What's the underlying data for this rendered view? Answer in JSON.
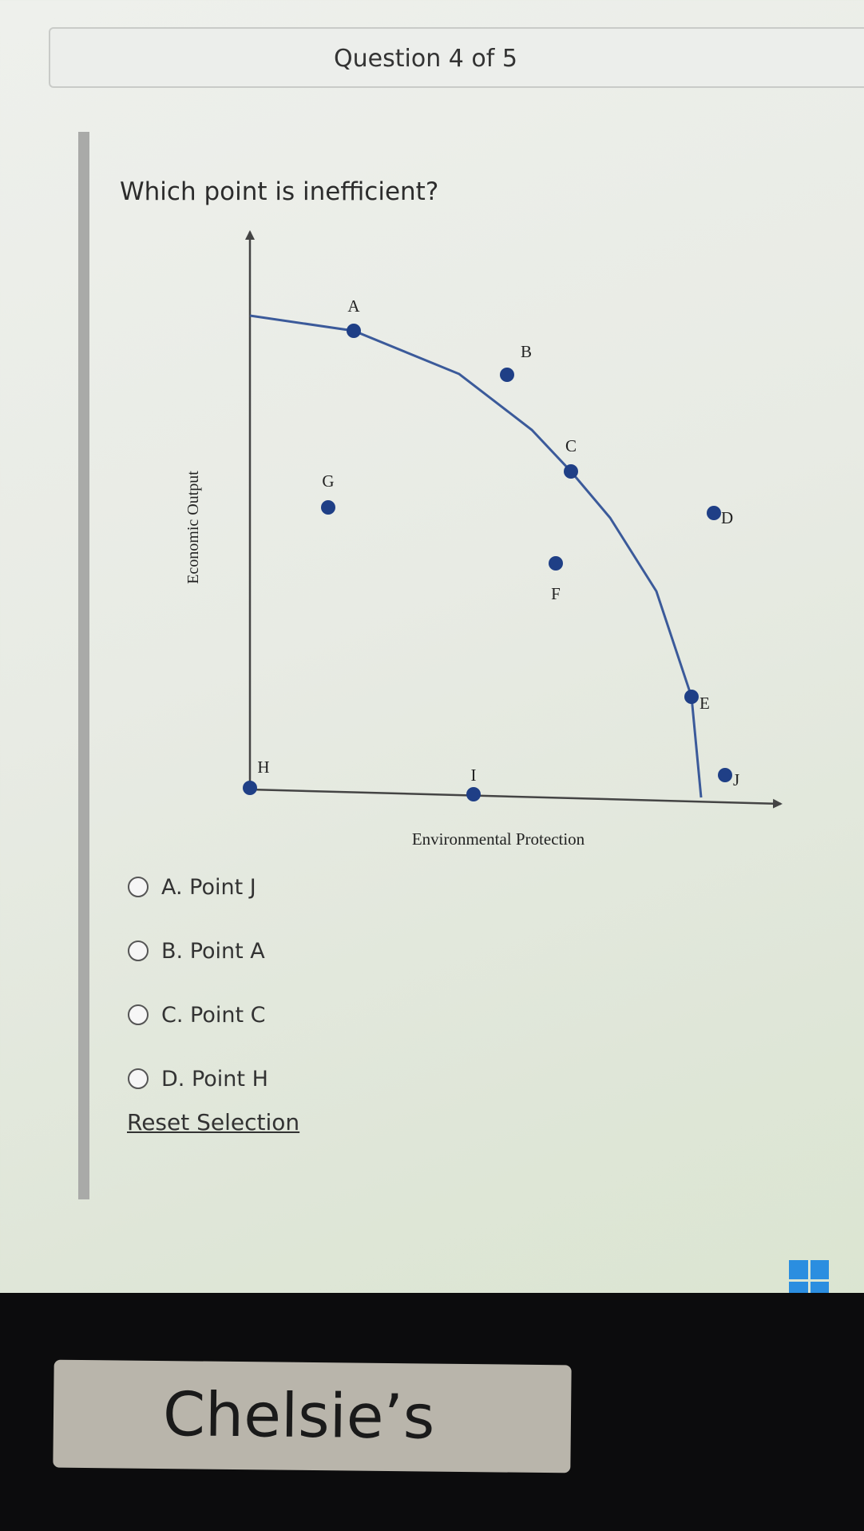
{
  "header": {
    "title": "Question 4 of 5"
  },
  "question": "Which point is inefficient?",
  "diagram": {
    "y_axis_label": "Economic Output",
    "x_axis_label": "Environmental Protection",
    "points": [
      "A",
      "B",
      "C",
      "G",
      "D",
      "F",
      "E",
      "J",
      "H",
      "I"
    ]
  },
  "options": [
    "A. Point J",
    "B. Point A",
    "C. Point C",
    "D. Point H"
  ],
  "reset": "Reset Selection",
  "sticker": "Chelsie’s"
}
